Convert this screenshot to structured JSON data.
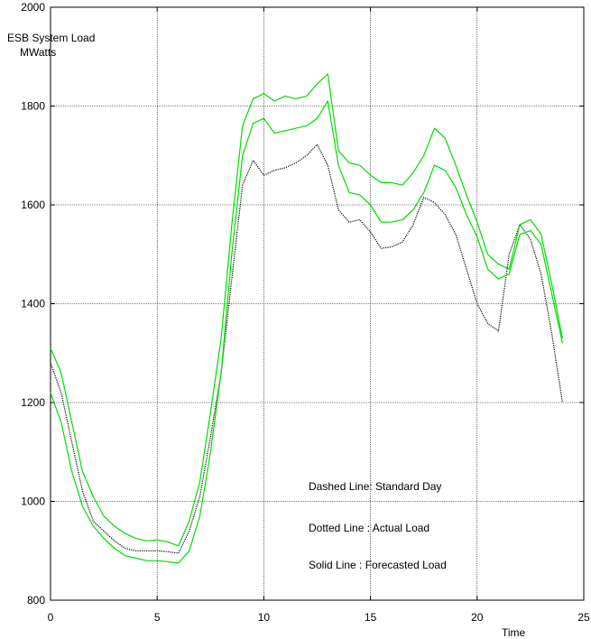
{
  "chart_data": {
    "type": "line",
    "title": "",
    "ylabel_lines": [
      "ESB System Load",
      "MWatts"
    ],
    "xlabel": "Time",
    "xlim": [
      0,
      25
    ],
    "ylim": [
      800,
      2000
    ],
    "xticks": [
      0,
      5,
      10,
      15,
      20,
      25
    ],
    "yticks": [
      800,
      1000,
      1200,
      1400,
      1600,
      1800,
      2000
    ],
    "grid": true,
    "annotations": [
      "Dashed Line: Standard Day",
      "Dotted Line : Actual Load",
      "Solid Line : Forecasted Load"
    ],
    "colors": {
      "forecast": "#00dd00",
      "actual": "#000000",
      "axes": "#000000"
    },
    "series": [
      {
        "style": "dotted",
        "color": "#000000",
        "points": [
          [
            0,
            1280
          ],
          [
            0.5,
            1220
          ],
          [
            1,
            1120
          ],
          [
            1.5,
            1020
          ],
          [
            2,
            960
          ],
          [
            2.5,
            940
          ],
          [
            3,
            920
          ],
          [
            3.5,
            905
          ],
          [
            4,
            900
          ],
          [
            4.5,
            900
          ],
          [
            5,
            900
          ],
          [
            5.5,
            898
          ],
          [
            6,
            895
          ],
          [
            6.5,
            940
          ],
          [
            7,
            1010
          ],
          [
            7.5,
            1130
          ],
          [
            8,
            1260
          ],
          [
            8.5,
            1450
          ],
          [
            9,
            1640
          ],
          [
            9.5,
            1690
          ],
          [
            10,
            1660
          ],
          [
            10.5,
            1670
          ],
          [
            11,
            1675
          ],
          [
            11.5,
            1685
          ],
          [
            12,
            1700
          ],
          [
            12.5,
            1722
          ],
          [
            13,
            1680
          ],
          [
            13.5,
            1590
          ],
          [
            14,
            1565
          ],
          [
            14.5,
            1570
          ],
          [
            15,
            1545
          ],
          [
            15.5,
            1512
          ],
          [
            16,
            1515
          ],
          [
            16.5,
            1525
          ],
          [
            17,
            1560
          ],
          [
            17.5,
            1615
          ],
          [
            18,
            1605
          ],
          [
            18.5,
            1580
          ],
          [
            19,
            1540
          ],
          [
            19.5,
            1470
          ],
          [
            20,
            1400
          ],
          [
            20.5,
            1360
          ],
          [
            21,
            1345
          ],
          [
            21.5,
            1500
          ],
          [
            22,
            1560
          ],
          [
            22.5,
            1530
          ],
          [
            23,
            1460
          ],
          [
            23.5,
            1340
          ],
          [
            24,
            1200
          ]
        ]
      },
      {
        "style": "solid",
        "color": "#00dd00",
        "points": [
          [
            0,
            1310
          ],
          [
            0.5,
            1260
          ],
          [
            1,
            1160
          ],
          [
            1.5,
            1060
          ],
          [
            2,
            1010
          ],
          [
            2.5,
            970
          ],
          [
            3,
            950
          ],
          [
            3.5,
            935
          ],
          [
            4,
            925
          ],
          [
            4.5,
            920
          ],
          [
            5,
            922
          ],
          [
            5.5,
            918
          ],
          [
            6,
            910
          ],
          [
            6.5,
            960
          ],
          [
            7,
            1040
          ],
          [
            7.5,
            1180
          ],
          [
            8,
            1330
          ],
          [
            8.5,
            1560
          ],
          [
            9,
            1760
          ],
          [
            9.5,
            1815
          ],
          [
            10,
            1825
          ],
          [
            10.5,
            1810
          ],
          [
            11,
            1820
          ],
          [
            11.5,
            1815
          ],
          [
            12,
            1820
          ],
          [
            12.5,
            1845
          ],
          [
            13,
            1865
          ],
          [
            13.5,
            1710
          ],
          [
            14,
            1685
          ],
          [
            14.5,
            1680
          ],
          [
            15,
            1660
          ],
          [
            15.5,
            1645
          ],
          [
            16,
            1645
          ],
          [
            16.5,
            1640
          ],
          [
            17,
            1665
          ],
          [
            17.5,
            1700
          ],
          [
            18,
            1755
          ],
          [
            18.5,
            1735
          ],
          [
            19,
            1680
          ],
          [
            19.5,
            1620
          ],
          [
            20,
            1565
          ],
          [
            20.5,
            1500
          ],
          [
            21,
            1480
          ],
          [
            21.5,
            1470
          ],
          [
            22,
            1560
          ],
          [
            22.5,
            1570
          ],
          [
            23,
            1540
          ],
          [
            23.5,
            1440
          ],
          [
            24,
            1330
          ]
        ]
      },
      {
        "style": "solid",
        "color": "#00dd00",
        "points": [
          [
            0,
            1220
          ],
          [
            0.5,
            1160
          ],
          [
            1,
            1060
          ],
          [
            1.5,
            990
          ],
          [
            2,
            950
          ],
          [
            2.5,
            925
          ],
          [
            3,
            905
          ],
          [
            3.5,
            890
          ],
          [
            4,
            885
          ],
          [
            4.5,
            880
          ],
          [
            5,
            880
          ],
          [
            5.5,
            878
          ],
          [
            6,
            875
          ],
          [
            6.5,
            900
          ],
          [
            7,
            970
          ],
          [
            7.5,
            1100
          ],
          [
            8,
            1260
          ],
          [
            8.5,
            1500
          ],
          [
            9,
            1700
          ],
          [
            9.5,
            1765
          ],
          [
            10,
            1775
          ],
          [
            10.5,
            1745
          ],
          [
            11,
            1750
          ],
          [
            11.5,
            1755
          ],
          [
            12,
            1760
          ],
          [
            12.5,
            1775
          ],
          [
            13,
            1810
          ],
          [
            13.5,
            1680
          ],
          [
            14,
            1625
          ],
          [
            14.5,
            1620
          ],
          [
            15,
            1600
          ],
          [
            15.5,
            1565
          ],
          [
            16,
            1565
          ],
          [
            16.5,
            1570
          ],
          [
            17,
            1590
          ],
          [
            17.5,
            1625
          ],
          [
            18,
            1680
          ],
          [
            18.5,
            1670
          ],
          [
            19,
            1635
          ],
          [
            19.5,
            1580
          ],
          [
            20,
            1535
          ],
          [
            20.5,
            1470
          ],
          [
            21,
            1450
          ],
          [
            21.5,
            1460
          ],
          [
            22,
            1540
          ],
          [
            22.5,
            1548
          ],
          [
            23,
            1520
          ],
          [
            23.5,
            1420
          ],
          [
            24,
            1320
          ]
        ]
      }
    ]
  }
}
